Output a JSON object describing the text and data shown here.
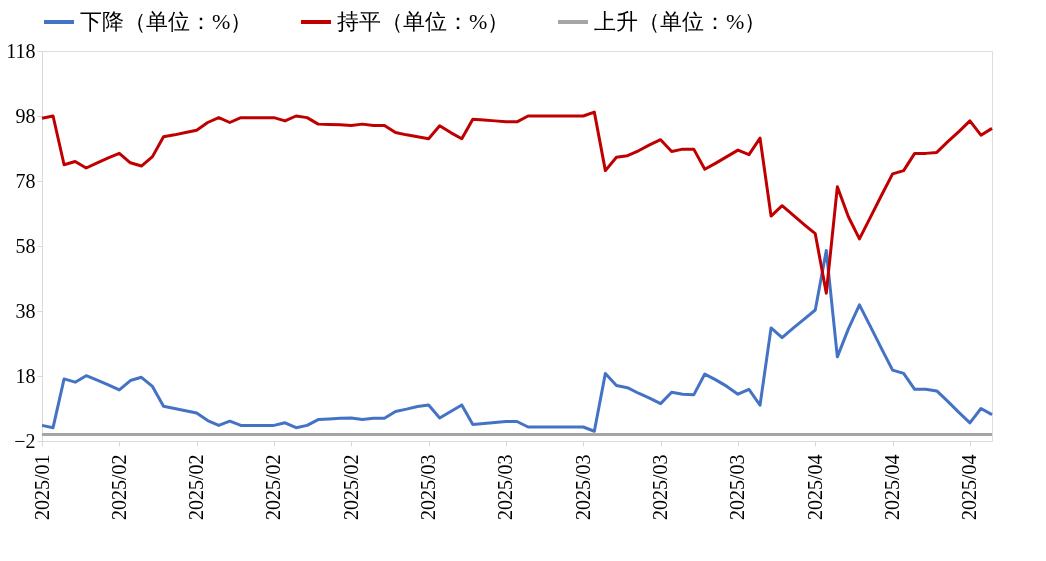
{
  "chart_data": {
    "type": "line",
    "categories": [
      "2025/01",
      null,
      null,
      null,
      null,
      null,
      null,
      "2025/02",
      null,
      null,
      null,
      null,
      null,
      null,
      "2025/02",
      null,
      null,
      null,
      null,
      null,
      null,
      "2025/02",
      null,
      null,
      null,
      null,
      null,
      null,
      "2025/02",
      null,
      null,
      null,
      null,
      null,
      null,
      "2025/03",
      null,
      null,
      null,
      null,
      null,
      null,
      "2025/03",
      null,
      null,
      null,
      null,
      null,
      null,
      "2025/03",
      null,
      null,
      null,
      null,
      null,
      null,
      "2025/03",
      null,
      null,
      null,
      null,
      null,
      null,
      "2025/03",
      null,
      null,
      null,
      null,
      null,
      null,
      "2025/04",
      null,
      null,
      null,
      null,
      null,
      null,
      "2025/04",
      null,
      null,
      null,
      null,
      null,
      null,
      "2025/04",
      null,
      null
    ],
    "series": [
      {
        "name": "下降（单位：%）",
        "color": "#4472c4",
        "values": [
          2.8,
          2.1,
          17.1,
          16.1,
          18.1,
          16.7,
          15.3,
          13.7,
          16.6,
          17.6,
          14.8,
          8.7,
          8.0,
          7.3,
          6.6,
          4.3,
          2.8,
          4.1,
          2.8,
          2.8,
          2.8,
          2.8,
          3.6,
          2.1,
          2.8,
          4.6,
          4.8,
          5.0,
          5.1,
          4.6,
          5.0,
          5.0,
          7.1,
          7.8,
          8.6,
          9.1,
          5.1,
          7.1,
          9.1,
          3.1,
          3.4,
          3.7,
          4.0,
          4.0,
          2.3,
          2.3,
          2.3,
          2.3,
          2.3,
          2.3,
          1.0,
          18.8,
          15.1,
          14.4,
          12.7,
          11.2,
          9.5,
          13.0,
          12.4,
          12.2,
          18.6,
          16.8,
          14.8,
          12.4,
          13.9,
          9.0,
          32.8,
          29.8,
          32.7,
          35.5,
          38.3,
          56.6,
          23.9,
          32.5,
          39.9,
          33.2,
          26.4,
          19.8,
          18.8,
          13.9,
          13.9,
          13.4,
          10.2,
          6.8,
          3.6,
          8.0,
          6.1
        ]
      },
      {
        "name": "持平（单位：%）",
        "color": "#c00000",
        "values": [
          97.3,
          98.0,
          83.0,
          84.0,
          82.0,
          83.6,
          85.1,
          86.5,
          83.6,
          82.6,
          85.5,
          91.6,
          92.2,
          92.9,
          93.6,
          96.0,
          97.5,
          96.0,
          97.5,
          97.5,
          97.5,
          97.5,
          96.5,
          98.0,
          97.5,
          95.5,
          95.4,
          95.3,
          95.1,
          95.5,
          95.1,
          95.1,
          92.9,
          92.2,
          91.6,
          91.0,
          95.0,
          92.9,
          91.0,
          97.0,
          96.8,
          96.5,
          96.2,
          96.2,
          98.0,
          98.0,
          98.0,
          98.0,
          98.0,
          98.0,
          99.2,
          81.2,
          85.3,
          85.8,
          87.3,
          89.1,
          90.7,
          87.1,
          87.8,
          87.8,
          81.6,
          83.5,
          85.5,
          87.5,
          86.1,
          91.2,
          67.2,
          70.4,
          67.5,
          64.6,
          61.8,
          43.5,
          76.2,
          67.0,
          60.2,
          66.9,
          73.6,
          80.2,
          81.2,
          86.5,
          86.5,
          86.8,
          90.1,
          93.2,
          96.5,
          92.1,
          94.2
        ]
      },
      {
        "name": "上升（单位：%）",
        "color": "#a5a5a5",
        "values": [
          0,
          0,
          0,
          0,
          0,
          0,
          0,
          0,
          0,
          0,
          0,
          0,
          0,
          0,
          0,
          0,
          0,
          0,
          0,
          0,
          0,
          0,
          0,
          0,
          0,
          0,
          0,
          0,
          0,
          0,
          0,
          0,
          0,
          0,
          0,
          0,
          0,
          0,
          0,
          0,
          0,
          0,
          0,
          0,
          0,
          0,
          0,
          0,
          0,
          0,
          0,
          0,
          0,
          0,
          0,
          0,
          0,
          0,
          0,
          0,
          0,
          0,
          0,
          0,
          0,
          0,
          0,
          0,
          0,
          0,
          0,
          0,
          0,
          0,
          0,
          0,
          0,
          0,
          0,
          0,
          0,
          0,
          0,
          0,
          0,
          0,
          0
        ]
      }
    ],
    "ylim": [
      -2,
      118
    ],
    "yticks": [
      -2,
      18,
      38,
      58,
      78,
      98,
      118
    ],
    "grid": false,
    "legend": "top",
    "line_style": "solid",
    "marker": "none"
  }
}
